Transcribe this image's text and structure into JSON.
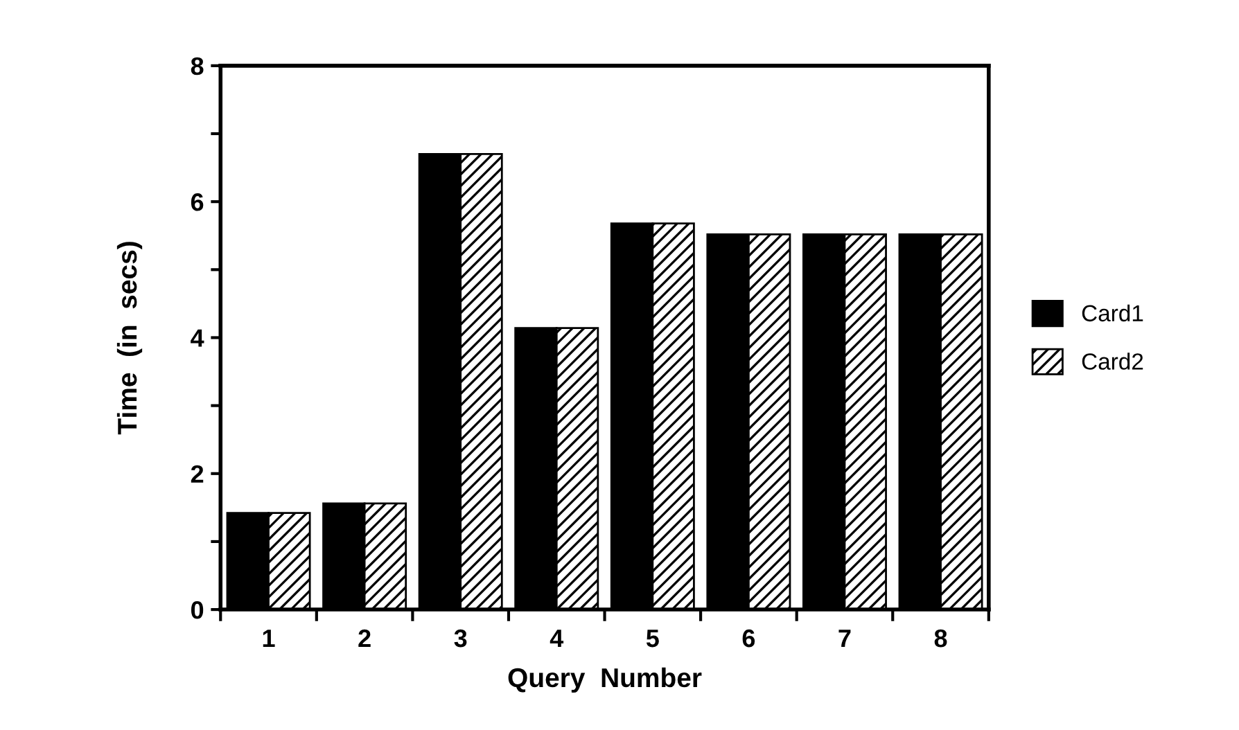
{
  "chart_data": {
    "type": "bar",
    "xlabel": "Query  Number",
    "ylabel": "Time  (in  secs)",
    "categories": [
      "1",
      "2",
      "3",
      "4",
      "5",
      "6",
      "7",
      "8"
    ],
    "series": [
      {
        "name": "Card1",
        "color": "#000000",
        "values": [
          1.42,
          1.56,
          6.7,
          4.14,
          5.68,
          5.52,
          5.52,
          5.52
        ]
      },
      {
        "name": "Card2",
        "color": "#000000",
        "values": [
          1.42,
          1.56,
          6.7,
          4.14,
          5.68,
          5.52,
          5.52,
          5.52
        ]
      }
    ],
    "ylim": [
      0,
      8
    ],
    "yticks": [
      0,
      {
        "value": 1,
        "label": null
      },
      2,
      {
        "value": 3,
        "label": null
      },
      4,
      {
        "value": 5,
        "label": null
      },
      6,
      {
        "value": 7,
        "label": null
      },
      8
    ],
    "grid": false,
    "legend": "right"
  }
}
